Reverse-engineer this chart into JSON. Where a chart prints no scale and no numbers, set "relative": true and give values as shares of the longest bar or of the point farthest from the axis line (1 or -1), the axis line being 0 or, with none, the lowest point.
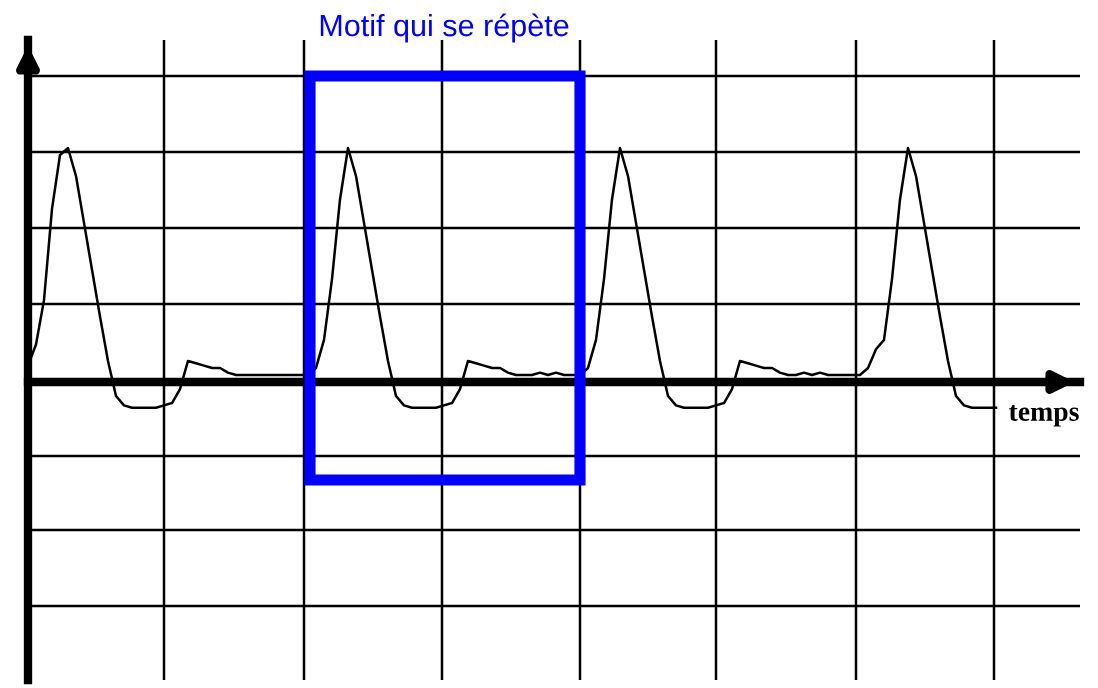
{
  "chart_data": {
    "type": "line",
    "relative": true,
    "xlabel": "temps",
    "annotations": [
      "Motif qui se répète"
    ],
    "grid": true,
    "tick_labels": false,
    "marker": "none",
    "line_style": "solid",
    "categories": [
      null,
      null,
      null,
      null,
      null,
      null,
      null,
      null,
      null,
      null,
      null,
      null,
      null,
      null,
      null,
      null,
      null,
      null,
      null,
      null,
      null,
      null,
      null,
      null,
      null,
      null,
      null,
      null,
      null,
      null,
      null,
      null,
      null,
      null,
      null,
      null,
      null,
      null,
      null,
      null,
      null,
      null,
      null,
      null,
      null,
      null,
      null,
      null,
      null,
      null,
      null,
      null,
      null,
      null,
      null,
      null,
      null,
      null,
      null,
      null,
      null,
      null,
      null,
      null,
      null,
      null,
      null,
      null,
      null,
      null,
      null,
      null,
      null,
      null,
      null,
      null,
      null,
      null,
      null,
      null,
      null,
      null,
      null,
      null,
      null,
      null,
      null,
      null,
      null,
      null,
      null,
      null,
      null,
      null,
      null,
      null,
      null,
      null,
      null,
      null,
      null,
      null,
      null,
      null,
      null,
      null,
      null,
      null,
      null,
      null,
      null,
      null,
      null,
      null,
      null,
      null,
      null,
      null,
      null,
      null,
      null,
      null
    ],
    "series": [
      {
        "color": "#000000",
        "values": [
          0.07,
          0.16,
          0.35,
          0.74,
          0.97,
          1.0,
          0.88,
          0.68,
          0.48,
          0.28,
          0.09,
          -0.06,
          -0.1,
          -0.11,
          -0.11,
          -0.11,
          -0.11,
          -0.1,
          -0.09,
          -0.03,
          0.09,
          0.08,
          0.07,
          0.06,
          0.06,
          0.04,
          0.03,
          0.03,
          0.03,
          0.03,
          0.03,
          0.03,
          0.03,
          0.03,
          0.03,
          0.03,
          0.06,
          0.18,
          0.44,
          0.78,
          1.0,
          0.88,
          0.68,
          0.48,
          0.28,
          0.09,
          -0.06,
          -0.1,
          -0.11,
          -0.11,
          -0.11,
          -0.11,
          -0.1,
          -0.09,
          -0.03,
          0.09,
          0.08,
          0.07,
          0.06,
          0.06,
          0.04,
          0.03,
          0.03,
          0.03,
          0.04,
          0.03,
          0.04,
          0.03,
          0.03,
          0.03,
          0.06,
          0.18,
          0.44,
          0.78,
          1.0,
          0.88,
          0.68,
          0.48,
          0.28,
          0.09,
          -0.06,
          -0.1,
          -0.11,
          -0.11,
          -0.11,
          -0.11,
          -0.1,
          -0.09,
          -0.03,
          0.09,
          0.08,
          0.07,
          0.06,
          0.06,
          0.04,
          0.03,
          0.03,
          0.04,
          0.03,
          0.04,
          0.03,
          0.03,
          0.03,
          0.03,
          0.03,
          0.06,
          0.14,
          0.18,
          0.44,
          0.78,
          1.0,
          0.88,
          0.68,
          0.48,
          0.28,
          0.09,
          -0.06,
          -0.1,
          -0.11,
          -0.11,
          -0.11,
          -0.11
        ]
      }
    ]
  }
}
